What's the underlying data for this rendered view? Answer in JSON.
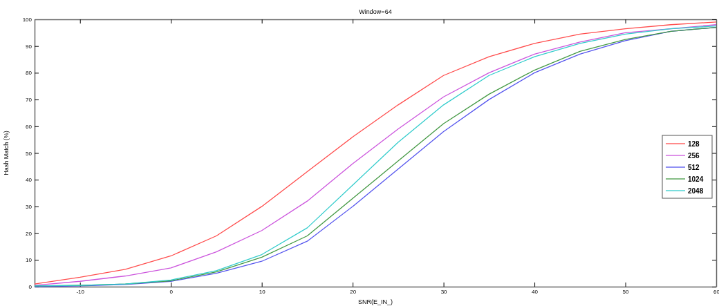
{
  "chart_data": {
    "type": "line",
    "title": "Window=64",
    "xlabel": "SNR(E_IN_)",
    "ylabel": "Hash Match (%)",
    "x": [
      -15,
      -10,
      -5,
      0,
      5,
      10,
      15,
      20,
      25,
      30,
      35,
      40,
      45,
      50,
      55,
      60
    ],
    "xlim": [
      -15,
      60
    ],
    "xticks": [
      -10,
      0,
      10,
      20,
      30,
      40,
      50,
      60
    ],
    "ylim": [
      0,
      100
    ],
    "yticks": [
      0,
      10,
      20,
      30,
      40,
      50,
      60,
      70,
      80,
      90,
      100
    ],
    "grid": false,
    "legend": "right",
    "line_style": "solid",
    "marker": "none",
    "series": [
      {
        "name": "128",
        "color": "#ff4d4d",
        "values": [
          1,
          3.5,
          6.5,
          11.5,
          19,
          30,
          43,
          56,
          68,
          79,
          86,
          91,
          94.5,
          96.5,
          98,
          99
        ]
      },
      {
        "name": "256",
        "color": "#cc55dd",
        "values": [
          0.5,
          2,
          4,
          7,
          13,
          21,
          32,
          46,
          59,
          71,
          80,
          87,
          91.5,
          95,
          96.5,
          98
        ]
      },
      {
        "name": "512",
        "color": "#5555ee",
        "values": [
          0,
          0.3,
          0.8,
          2,
          5,
          9.5,
          17,
          30,
          44,
          58,
          70,
          80,
          87,
          92,
          95.5,
          97
        ]
      },
      {
        "name": "1024",
        "color": "#449944",
        "values": [
          0.3,
          0.5,
          1,
          2.2,
          5.5,
          11,
          19,
          33,
          47,
          61,
          72,
          81,
          88,
          92.5,
          95.5,
          97
        ]
      },
      {
        "name": "2048",
        "color": "#33cccc",
        "values": [
          0.3,
          0.5,
          1,
          2.5,
          6,
          12,
          22,
          38,
          54,
          68,
          79,
          86,
          91,
          94.5,
          96.5,
          97.5
        ]
      }
    ]
  }
}
